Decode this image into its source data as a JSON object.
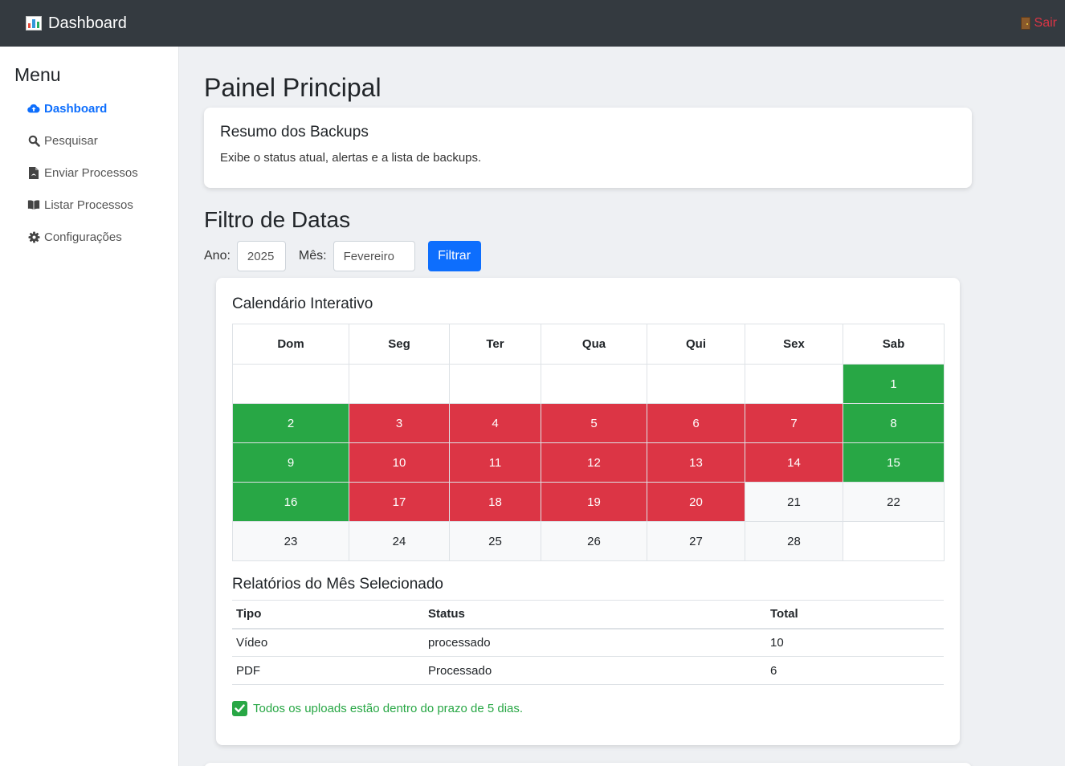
{
  "navbar": {
    "title": "Dashboard",
    "logout_label": "Sair"
  },
  "sidebar": {
    "title": "Menu",
    "items": [
      {
        "label": "Dashboard",
        "icon": "cloud-upload-icon",
        "active": true
      },
      {
        "label": "Pesquisar",
        "icon": "search-icon"
      },
      {
        "label": "Enviar Processos",
        "icon": "file-pdf-icon"
      },
      {
        "label": "Listar Processos",
        "icon": "book-icon"
      },
      {
        "label": "Configurações",
        "icon": "gear-icon"
      }
    ]
  },
  "main": {
    "page_title": "Painel Principal",
    "summary": {
      "title": "Resumo dos Backups",
      "text": "Exibe o status atual, alertas e a lista de backups."
    },
    "filter": {
      "title": "Filtro de Datas",
      "year_label": "Ano:",
      "year_value": "2025",
      "month_label": "Mês:",
      "month_value": "Fevereiro",
      "button_label": "Filtrar"
    },
    "calendar": {
      "title": "Calendário Interativo",
      "weekdays": [
        "Dom",
        "Seg",
        "Ter",
        "Qua",
        "Qui",
        "Sex",
        "Sab"
      ],
      "weeks": [
        [
          {
            "d": ""
          },
          {
            "d": ""
          },
          {
            "d": ""
          },
          {
            "d": ""
          },
          {
            "d": ""
          },
          {
            "d": ""
          },
          {
            "d": "1",
            "s": "ok"
          }
        ],
        [
          {
            "d": "2",
            "s": "ok"
          },
          {
            "d": "3",
            "s": "err"
          },
          {
            "d": "4",
            "s": "err"
          },
          {
            "d": "5",
            "s": "err"
          },
          {
            "d": "6",
            "s": "err"
          },
          {
            "d": "7",
            "s": "err"
          },
          {
            "d": "8",
            "s": "ok"
          }
        ],
        [
          {
            "d": "9",
            "s": "ok"
          },
          {
            "d": "10",
            "s": "err"
          },
          {
            "d": "11",
            "s": "err"
          },
          {
            "d": "12",
            "s": "err"
          },
          {
            "d": "13",
            "s": "err"
          },
          {
            "d": "14",
            "s": "err"
          },
          {
            "d": "15",
            "s": "ok"
          }
        ],
        [
          {
            "d": "16",
            "s": "ok"
          },
          {
            "d": "17",
            "s": "err"
          },
          {
            "d": "18",
            "s": "err"
          },
          {
            "d": "19",
            "s": "err"
          },
          {
            "d": "20",
            "s": "err"
          },
          {
            "d": "21",
            "s": "future"
          },
          {
            "d": "22",
            "s": "future"
          }
        ],
        [
          {
            "d": "23",
            "s": "future"
          },
          {
            "d": "24",
            "s": "future"
          },
          {
            "d": "25",
            "s": "future"
          },
          {
            "d": "26",
            "s": "future"
          },
          {
            "d": "27",
            "s": "future"
          },
          {
            "d": "28",
            "s": "future"
          },
          {
            "d": ""
          }
        ]
      ],
      "status_colors": {
        "ok": "#28a745",
        "err": "#dc3545",
        "future": "#f8f9fa"
      }
    },
    "reports": {
      "title": "Relatórios do Mês Selecionado",
      "columns": [
        "Tipo",
        "Status",
        "Total"
      ],
      "rows": [
        [
          "Vídeo",
          "processado",
          "10"
        ],
        [
          "PDF",
          "Processado",
          "6"
        ]
      ],
      "ok_message": "Todos os uploads estão dentro do prazo de 5 dias."
    }
  }
}
